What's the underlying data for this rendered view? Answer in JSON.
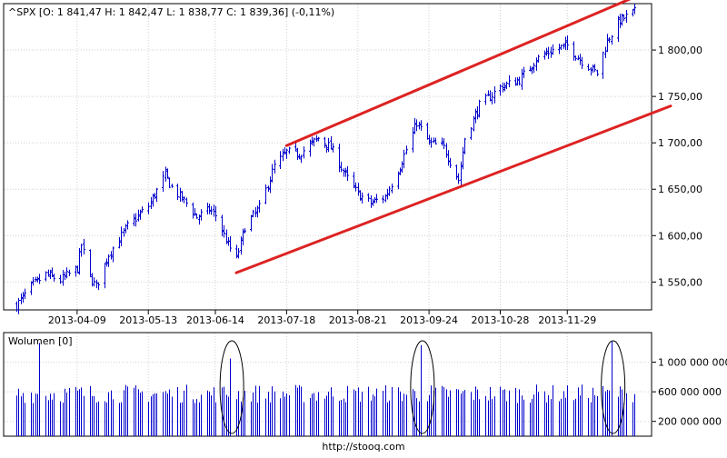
{
  "header": {
    "quote": "^SPX [O: 1 841,47  H: 1 842,47  L: 1 838,77  C: 1 839,36] (-0,11%)"
  },
  "volume_panel": {
    "title": "Wolumen [0]"
  },
  "footer": {
    "source": "http://stooq.com"
  },
  "colors": {
    "candle": "#0000cc",
    "trendline": "#dd2222",
    "grid": "#d0d0d0"
  },
  "chart_data": [
    {
      "type": "candlestick",
      "title": "^SPX [O: 1 841,47  H: 1 842,47  L: 1 838,77  C: 1 839,36] (-0,11%)",
      "x_tick_labels": [
        "2013-04-09",
        "2013-05-13",
        "2013-06-14",
        "2013-07-18",
        "2013-08-21",
        "2013-09-24",
        "2013-10-28",
        "2013-11-29"
      ],
      "y_tick_values": [
        1550,
        1600,
        1650,
        1700,
        1750,
        1800
      ],
      "y_tick_labels": [
        "1 550,00",
        "1 600,00",
        "1 650,00",
        "1 700,00",
        "1 750,00",
        "1 800,00"
      ],
      "ylim": [
        1520,
        1850
      ],
      "grid": true,
      "x_range_days": [
        "2013-03-11",
        "2013-12-31"
      ],
      "close_anchors": [
        [
          "2013-03-11",
          1525
        ],
        [
          "2013-03-18",
          1545
        ],
        [
          "2013-03-25",
          1558
        ],
        [
          "2013-04-01",
          1552
        ],
        [
          "2013-04-09",
          1565
        ],
        [
          "2013-04-11",
          1590
        ],
        [
          "2013-04-15",
          1555
        ],
        [
          "2013-04-18",
          1545
        ],
        [
          "2013-04-24",
          1580
        ],
        [
          "2013-05-03",
          1610
        ],
        [
          "2013-05-13",
          1632
        ],
        [
          "2013-05-21",
          1665
        ],
        [
          "2013-05-24",
          1652
        ],
        [
          "2013-05-31",
          1635
        ],
        [
          "2013-06-05",
          1620
        ],
        [
          "2013-06-11",
          1628
        ],
        [
          "2013-06-14",
          1622
        ],
        [
          "2013-06-20",
          1590
        ],
        [
          "2013-06-24",
          1575
        ],
        [
          "2013-06-28",
          1610
        ],
        [
          "2013-07-05",
          1630
        ],
        [
          "2013-07-12",
          1675
        ],
        [
          "2013-07-18",
          1690
        ],
        [
          "2013-07-24",
          1688
        ],
        [
          "2013-08-02",
          1705
        ],
        [
          "2013-08-08",
          1695
        ],
        [
          "2013-08-15",
          1665
        ],
        [
          "2013-08-21",
          1645
        ],
        [
          "2013-08-27",
          1635
        ],
        [
          "2013-09-03",
          1642
        ],
        [
          "2013-09-10",
          1675
        ],
        [
          "2013-09-18",
          1722
        ],
        [
          "2013-09-24",
          1700
        ],
        [
          "2013-10-01",
          1695
        ],
        [
          "2013-10-08",
          1660
        ],
        [
          "2013-10-11",
          1705
        ],
        [
          "2013-10-18",
          1740
        ],
        [
          "2013-10-28",
          1760
        ],
        [
          "2013-11-06",
          1768
        ],
        [
          "2013-11-14",
          1790
        ],
        [
          "2013-11-22",
          1800
        ],
        [
          "2013-11-29",
          1805
        ],
        [
          "2013-12-05",
          1790
        ],
        [
          "2013-12-13",
          1775
        ],
        [
          "2013-12-18",
          1810
        ],
        [
          "2013-12-24",
          1832
        ],
        [
          "2013-12-31",
          1841
        ]
      ],
      "annotations": {
        "trendlines": [
          {
            "from": [
              "2013-06-24",
              1560
            ],
            "to": [
              "2013-12-31",
              1726
            ]
          },
          {
            "from": [
              "2013-07-18",
              1697
            ],
            "to": [
              "2013-12-31",
              1860
            ]
          }
        ]
      }
    },
    {
      "type": "bar",
      "title": "Wolumen [0]",
      "y_tick_values": [
        200000000,
        600000000,
        1000000000
      ],
      "y_tick_labels": [
        "200 000 000",
        "600 000 000",
        "1 000 000 000"
      ],
      "ylim": [
        0,
        1400000000
      ],
      "grid": true,
      "typical_volume": 560000000,
      "spikes": [
        [
          "2013-03-22",
          1260000000
        ],
        [
          "2013-06-21",
          1050000000
        ],
        [
          "2013-09-20",
          1230000000
        ],
        [
          "2013-12-20",
          1280000000
        ]
      ],
      "annotations": {
        "ellipses_around": [
          "2013-06-21",
          "2013-09-20",
          "2013-12-20"
        ]
      }
    }
  ]
}
